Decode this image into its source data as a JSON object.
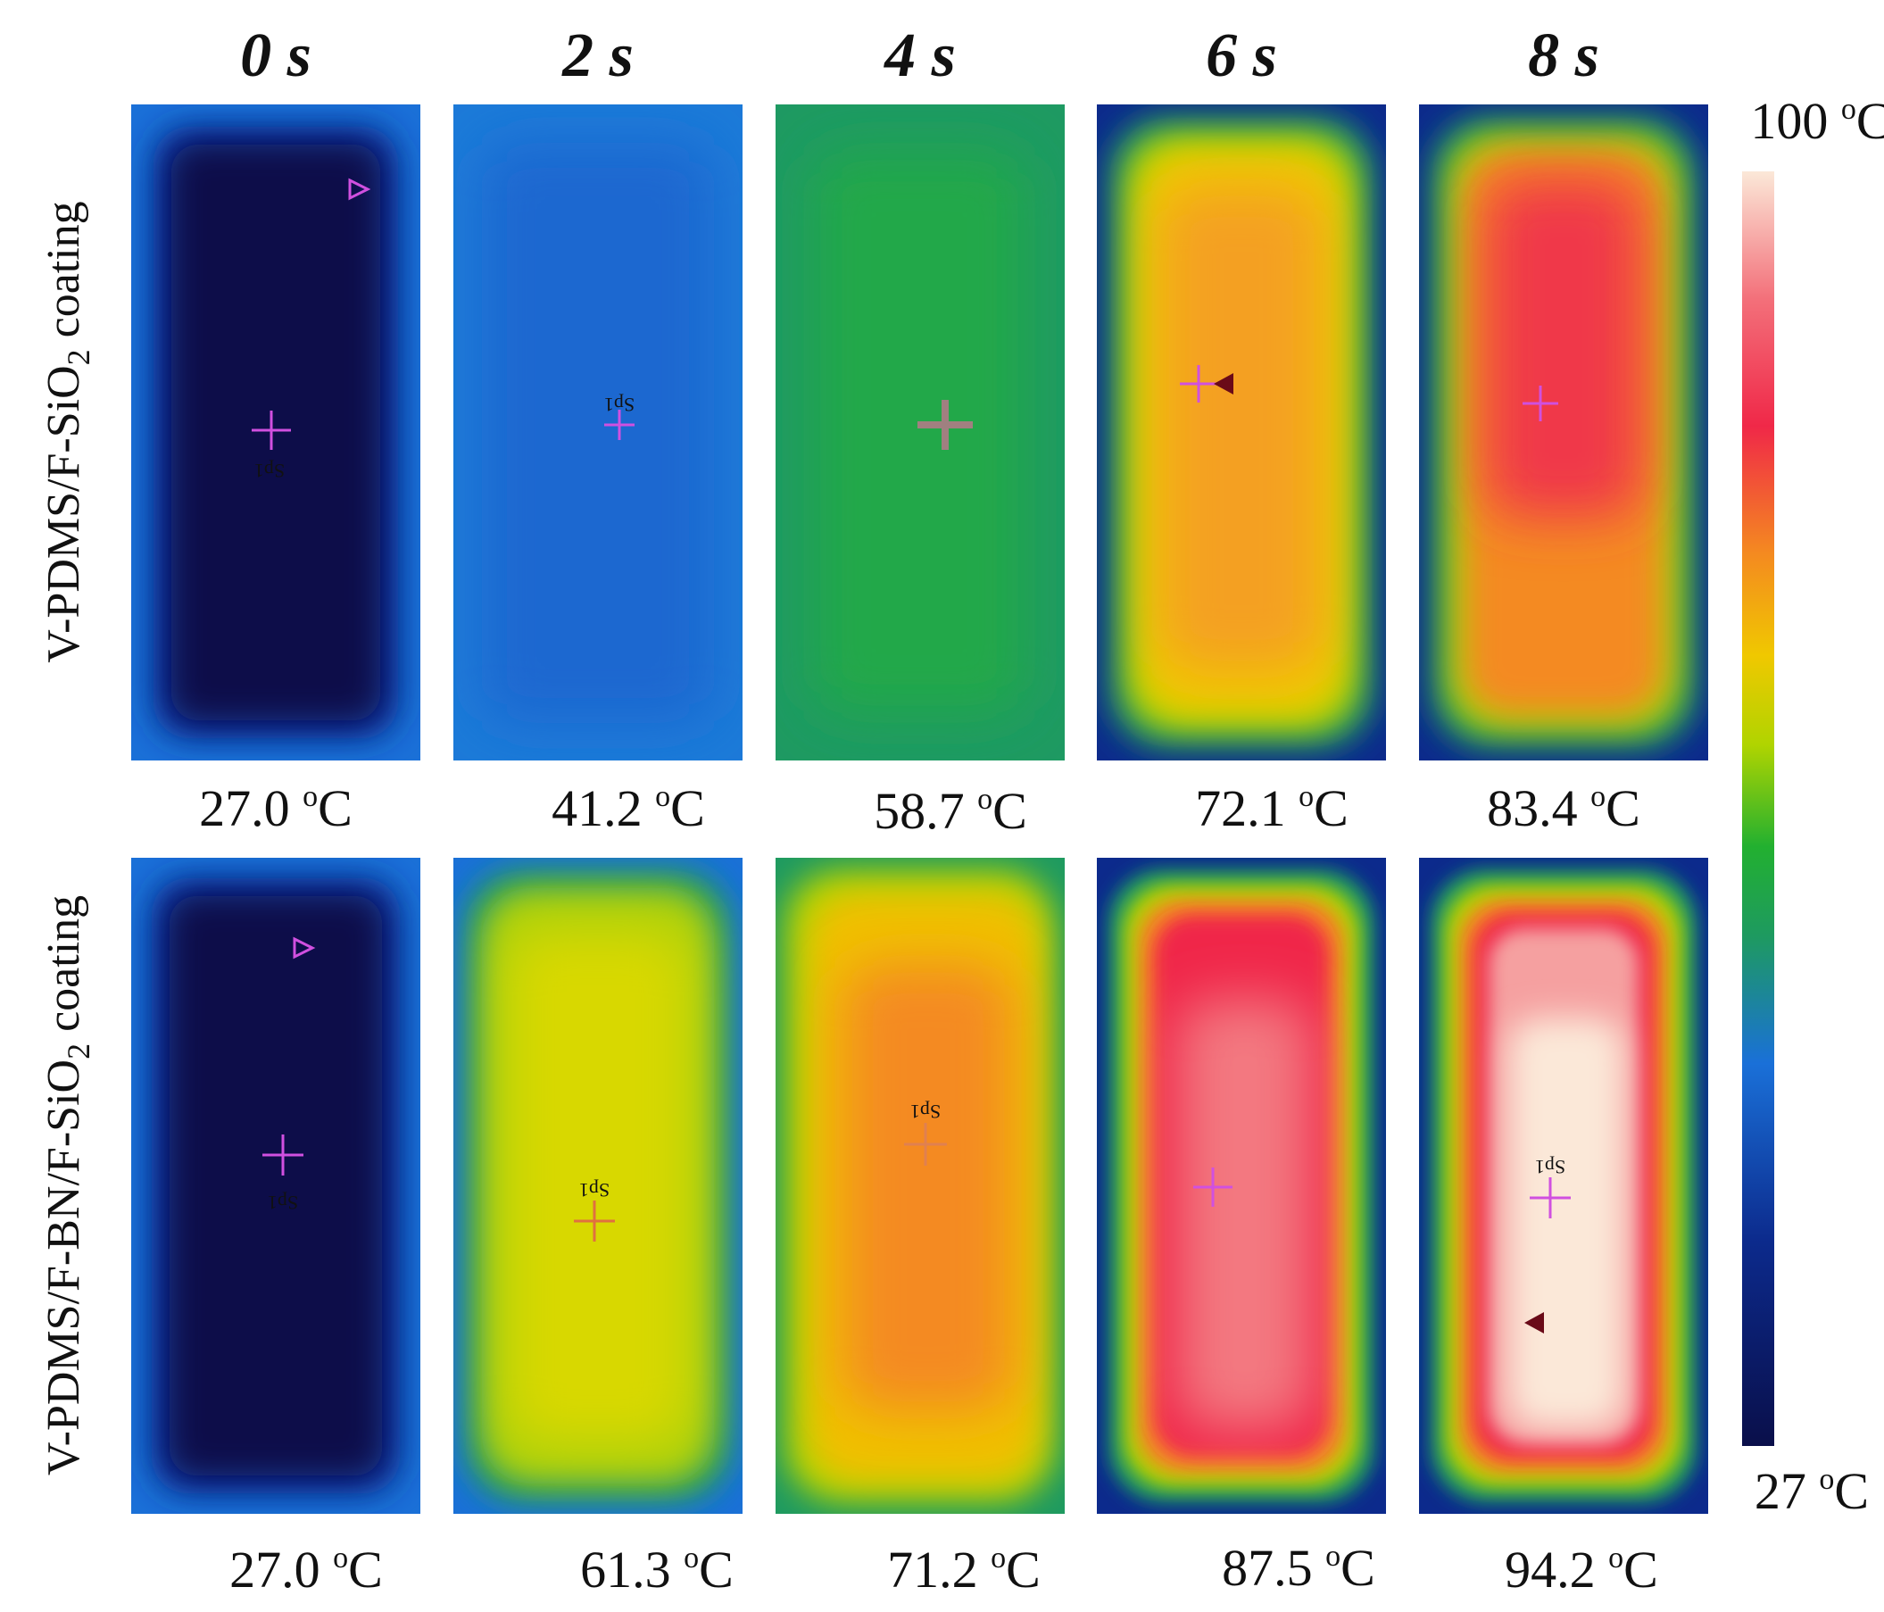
{
  "time_labels": [
    "0 s",
    "2 s",
    "4 s",
    "6 s",
    "8 s"
  ],
  "row_labels": [
    {
      "pre": "V-PDMS/F-SiO",
      "sub": "2",
      "post": " coating"
    },
    {
      "pre": "V-PDMS/F-BN/F-SiO",
      "sub": "2",
      "post": " coating"
    }
  ],
  "rows": [
    {
      "temperatures": [
        {
          "value": "27.0",
          "sup": "o",
          "unit": "C"
        },
        {
          "value": "41.2",
          "sup": "o",
          "unit": "C"
        },
        {
          "value": "58.7",
          "sup": "o",
          "unit": "C"
        },
        {
          "value": "72.1",
          "sup": "o",
          "unit": "C"
        },
        {
          "value": "83.4",
          "sup": "o",
          "unit": "C"
        }
      ]
    },
    {
      "temperatures": [
        {
          "value": "27.0",
          "sup": "o",
          "unit": "C"
        },
        {
          "value": "61.3",
          "sup": "o",
          "unit": "C"
        },
        {
          "value": "71.2",
          "sup": "o",
          "unit": "C"
        },
        {
          "value": "87.5",
          "sup": "o",
          "unit": "C"
        },
        {
          "value": "94.2",
          "sup": "o",
          "unit": "C"
        }
      ]
    }
  ],
  "scale": {
    "max": {
      "value": "100",
      "sup": "o",
      "unit": "C"
    },
    "min": {
      "value": "27",
      "sup": "o",
      "unit": "C"
    }
  },
  "spot_marker_label": "Sp1",
  "colors": {
    "background": "#0a1050",
    "palette": [
      "#0a0f4a",
      "#0c2a8c",
      "#1a70d8",
      "#1e9a60",
      "#22b030",
      "#b0d400",
      "#f0c800",
      "#f48a20",
      "#f02848",
      "#f3707a",
      "#fbe8d8"
    ]
  }
}
